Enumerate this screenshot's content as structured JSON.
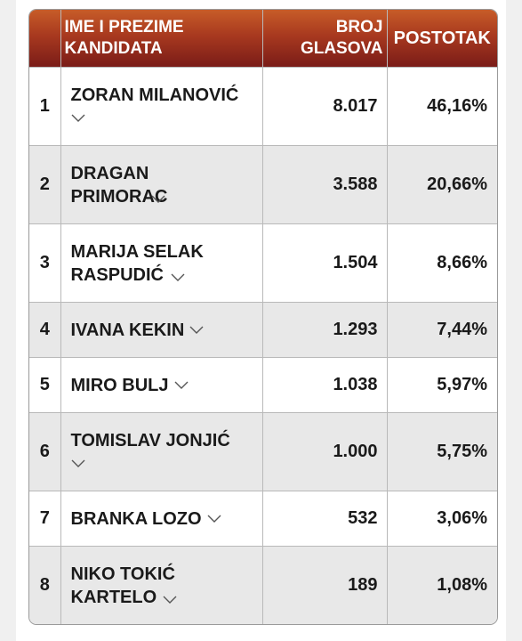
{
  "headers": {
    "rank": "",
    "candidate": "IME I PREZIME KANDIDATA",
    "votes": "BROJ GLASOVA",
    "percent": "POSTOTAK"
  },
  "rows": [
    {
      "rank": "1",
      "name": "ZORAN MILANOVIĆ",
      "votes": "8.017",
      "percent": "46,16%"
    },
    {
      "rank": "2",
      "name": "DRAGAN PRIMORAC",
      "votes": "3.588",
      "percent": "20,66%"
    },
    {
      "rank": "3",
      "name": "MARIJA SELAK RASPUDIĆ",
      "votes": "1.504",
      "percent": "8,66%"
    },
    {
      "rank": "4",
      "name": "IVANA KEKIN",
      "votes": "1.293",
      "percent": "7,44%"
    },
    {
      "rank": "5",
      "name": "MIRO BULJ",
      "votes": "1.038",
      "percent": "5,97%"
    },
    {
      "rank": "6",
      "name": "TOMISLAV JONJIĆ",
      "votes": "1.000",
      "percent": "5,75%"
    },
    {
      "rank": "7",
      "name": "BRANKA LOZO",
      "votes": "532",
      "percent": "3,06%"
    },
    {
      "rank": "8",
      "name": "NIKO TOKIĆ KARTELO",
      "votes": "189",
      "percent": "1,08%"
    }
  ],
  "colors": {
    "header_gradient_top": "#c75c28",
    "header_gradient_bottom": "#7a1c18",
    "row_stripe": "#e8e8e8"
  },
  "icons": {
    "expand": "chevron-down-icon"
  }
}
